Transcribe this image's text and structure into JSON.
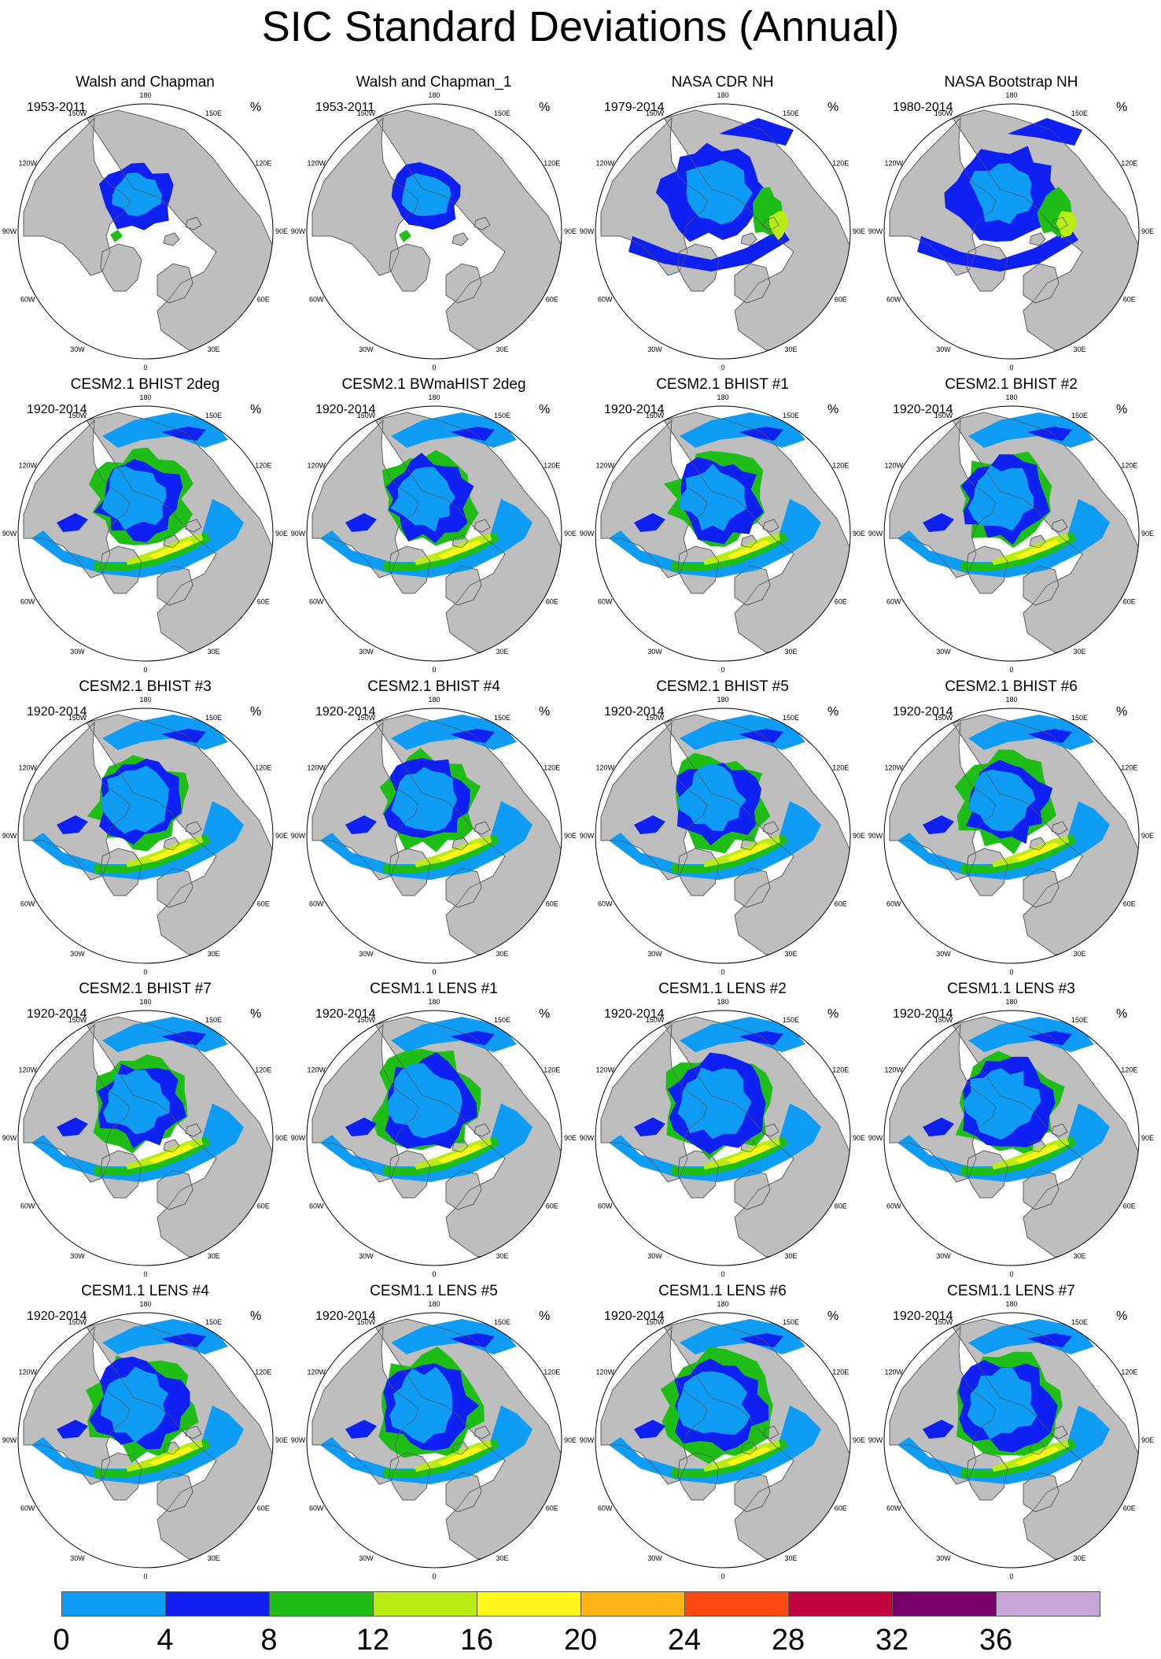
{
  "title": "SIC Standard Deviations (Annual)",
  "unit_label": "%",
  "longitude_labels": [
    "180",
    "150W",
    "150E",
    "120W",
    "120E",
    "90W",
    "90E",
    "60W",
    "60E",
    "30W",
    "30E",
    "0"
  ],
  "panels": [
    {
      "title": "Walsh and Chapman",
      "period": "1953-2011",
      "pattern": "obs-low"
    },
    {
      "title": "Walsh and Chapman_1",
      "period": "1953-2011",
      "pattern": "obs-low"
    },
    {
      "title": "NASA CDR NH",
      "period": "1979-2014",
      "pattern": "obs-sat"
    },
    {
      "title": "NASA Bootstrap NH",
      "period": "1980-2014",
      "pattern": "obs-sat"
    },
    {
      "title": "CESM2.1 BHIST 2deg",
      "period": "1920-2014",
      "pattern": "model"
    },
    {
      "title": "CESM2.1 BWmaHIST 2deg",
      "period": "1920-2014",
      "pattern": "model"
    },
    {
      "title": "CESM2.1 BHIST #1",
      "period": "1920-2014",
      "pattern": "model"
    },
    {
      "title": "CESM2.1 BHIST #2",
      "period": "1920-2014",
      "pattern": "model"
    },
    {
      "title": "CESM2.1 BHIST #3",
      "period": "1920-2014",
      "pattern": "model"
    },
    {
      "title": "CESM2.1 BHIST #4",
      "period": "1920-2014",
      "pattern": "model"
    },
    {
      "title": "CESM2.1 BHIST #5",
      "period": "1920-2014",
      "pattern": "model"
    },
    {
      "title": "CESM2.1 BHIST #6",
      "period": "1920-2014",
      "pattern": "model"
    },
    {
      "title": "CESM2.1 BHIST #7",
      "period": "1920-2014",
      "pattern": "model"
    },
    {
      "title": "CESM1.1 LENS #1",
      "period": "1920-2014",
      "pattern": "lens"
    },
    {
      "title": "CESM1.1 LENS #2",
      "period": "1920-2014",
      "pattern": "lens"
    },
    {
      "title": "CESM1.1 LENS #3",
      "period": "1920-2014",
      "pattern": "lens"
    },
    {
      "title": "CESM1.1 LENS #4",
      "period": "1920-2014",
      "pattern": "lens"
    },
    {
      "title": "CESM1.1 LENS #5",
      "period": "1920-2014",
      "pattern": "lens"
    },
    {
      "title": "CESM1.1 LENS #6",
      "period": "1920-2014",
      "pattern": "lens"
    },
    {
      "title": "CESM1.1 LENS #7",
      "period": "1920-2014",
      "pattern": "lens"
    }
  ],
  "colors": {
    "land": "#bebebe",
    "ocean": "#ffffff",
    "coast": "#555555",
    "levels": [
      "#0f9cf5",
      "#0e20f2",
      "#1fbe17",
      "#b9ec14",
      "#fff516",
      "#fdb414",
      "#fd4a10",
      "#c2013f",
      "#79016c",
      "#c6a6d6"
    ]
  },
  "colorbar": {
    "tick_labels": [
      "0",
      "4",
      "8",
      "12",
      "16",
      "20",
      "24",
      "28",
      "32",
      "36"
    ]
  }
}
